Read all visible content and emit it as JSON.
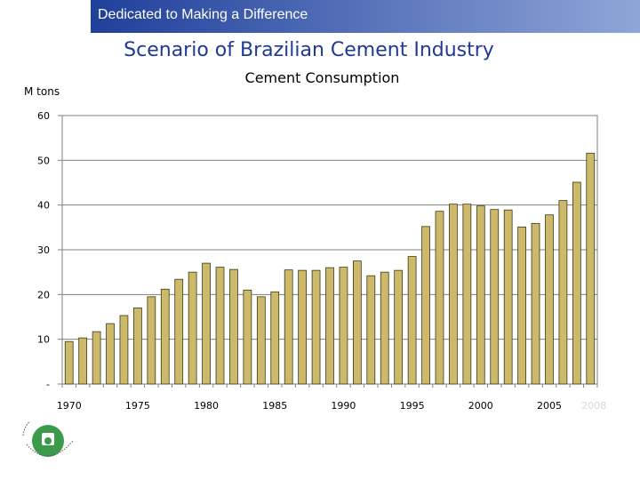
{
  "header": {
    "banner_text": "Dedicated to Making a Difference",
    "banner_color_start": "#1f3f9a",
    "banner_color_end": "#8fa6d8"
  },
  "slide": {
    "title": "Scenario of Brazilian Cement Industry",
    "title_color": "#1f3a93"
  },
  "logo": {
    "icon": "wbcsd-globe-logo-icon"
  },
  "chart_data": {
    "type": "bar",
    "title": "Cement Consumption",
    "ylabel": "M tons",
    "xlabel": "",
    "ylim": [
      0,
      60
    ],
    "yticks": [
      0,
      10,
      20,
      30,
      40,
      50,
      60
    ],
    "ytick_labels": [
      "-",
      "10",
      "20",
      "30",
      "40",
      "50",
      "60"
    ],
    "xtick_labels": [
      {
        "year": 1970,
        "label": "1970"
      },
      {
        "year": 1975,
        "label": "1975"
      },
      {
        "year": 1980,
        "label": "1980"
      },
      {
        "year": 1985,
        "label": "1985"
      },
      {
        "year": 1990,
        "label": "1990"
      },
      {
        "year": 1995,
        "label": "1995"
      },
      {
        "year": 2000,
        "label": "2000"
      },
      {
        "year": 2005,
        "label": "2005"
      },
      {
        "year": 2008,
        "label": "2008"
      }
    ],
    "categories": [
      1970,
      1971,
      1972,
      1973,
      1974,
      1975,
      1976,
      1977,
      1978,
      1979,
      1980,
      1981,
      1982,
      1983,
      1984,
      1985,
      1986,
      1987,
      1988,
      1989,
      1990,
      1991,
      1992,
      1993,
      1994,
      1995,
      1996,
      1997,
      1998,
      1999,
      2000,
      2001,
      2002,
      2003,
      2004,
      2005,
      2006,
      2007,
      2008
    ],
    "values": [
      9.5,
      10.3,
      11.7,
      13.5,
      15.3,
      17.0,
      19.5,
      21.2,
      23.4,
      25.0,
      27.0,
      26.1,
      25.6,
      21.0,
      19.5,
      20.6,
      25.5,
      25.4,
      25.4,
      26.0,
      26.1,
      27.5,
      24.2,
      25.0,
      25.4,
      28.5,
      35.2,
      38.6,
      40.2,
      40.2,
      39.8,
      39.0,
      38.9,
      35.1,
      35.9,
      37.8,
      41.0,
      45.1,
      51.6
    ],
    "bar_color": "#cdb96a",
    "bar_edge_color": "#3a3a1a",
    "grid": true,
    "legend": "none"
  }
}
